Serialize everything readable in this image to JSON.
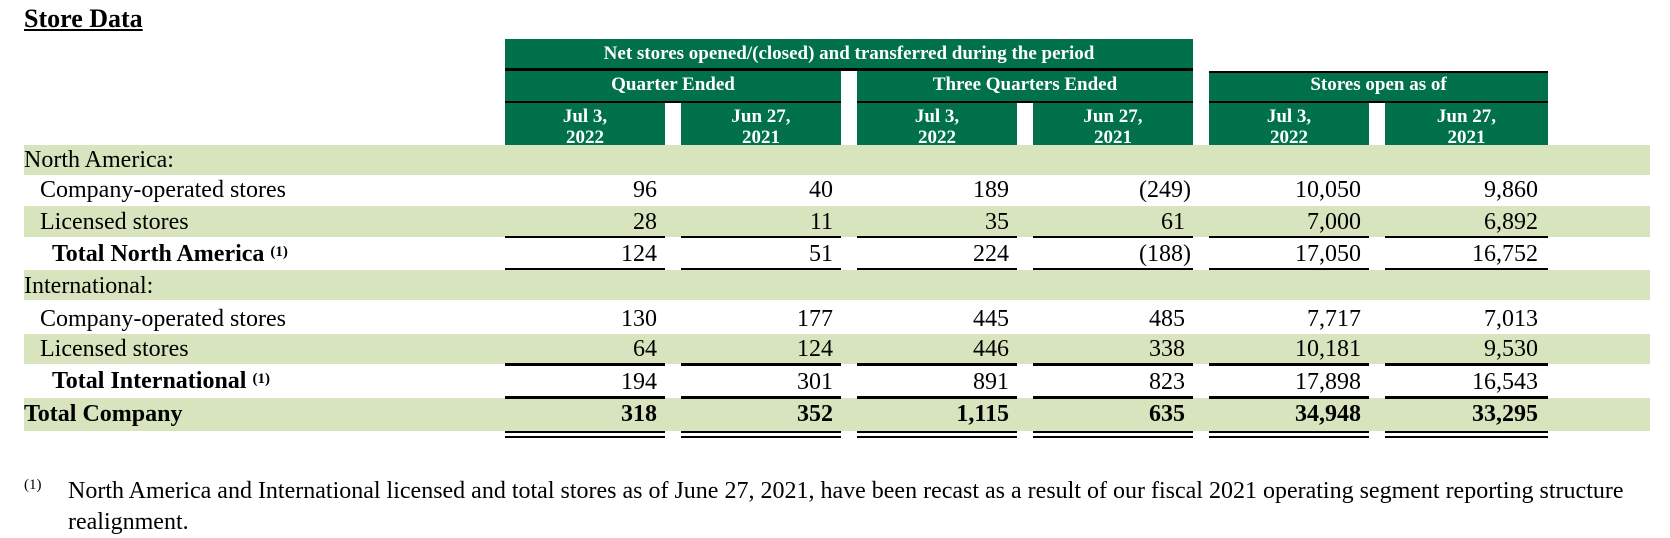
{
  "title": "Store Data",
  "header": {
    "net_group": "Net stores opened/(closed) and transferred during the period",
    "quarter_ended": "Quarter Ended",
    "three_quarters_ended": "Three Quarters Ended",
    "stores_open_as_of": "Stores open as of",
    "columns": [
      {
        "line1": "Jul 3,",
        "line2": "2022"
      },
      {
        "line1": "Jun 27,",
        "line2": "2021"
      },
      {
        "line1": "Jul 3,",
        "line2": "2022"
      },
      {
        "line1": "Jun 27,",
        "line2": "2021"
      },
      {
        "line1": "Jul 3,",
        "line2": "2022"
      },
      {
        "line1": "Jun 27,",
        "line2": "2021"
      }
    ]
  },
  "rows": [
    {
      "label": "North America:",
      "values": [
        "",
        "",
        "",
        "",
        "",
        ""
      ]
    },
    {
      "label": "Company-operated stores",
      "values": [
        "96",
        "40",
        "189",
        "(249)",
        "10,050",
        "9,860"
      ]
    },
    {
      "label": "Licensed stores",
      "values": [
        "28",
        "11",
        "35",
        "61",
        "7,000",
        "6,892"
      ]
    },
    {
      "label": "Total North America",
      "sup": "(1)",
      "values": [
        "124",
        "51",
        "224",
        "(188)",
        "17,050",
        "16,752"
      ]
    },
    {
      "label": "International:",
      "values": [
        "",
        "",
        "",
        "",
        "",
        ""
      ]
    },
    {
      "label": "Company-operated stores",
      "values": [
        "130",
        "177",
        "445",
        "485",
        "7,717",
        "7,013"
      ]
    },
    {
      "label": "Licensed stores",
      "values": [
        "64",
        "124",
        "446",
        "338",
        "10,181",
        "9,530"
      ]
    },
    {
      "label": "Total International",
      "sup": "(1)",
      "values": [
        "194",
        "301",
        "891",
        "823",
        "17,898",
        "16,543"
      ]
    },
    {
      "label": "Total Company",
      "values": [
        "318",
        "352",
        "1,115",
        "635",
        "34,948",
        "33,295"
      ]
    }
  ],
  "footnote": {
    "mark": "(1)",
    "text": "North America and International licensed and total stores as of June 27, 2021, have been recast as a result of our fiscal 2021 operating segment reporting structure realignment."
  },
  "colors": {
    "header_green": "#00714a",
    "band_green": "#d7e4bd"
  }
}
